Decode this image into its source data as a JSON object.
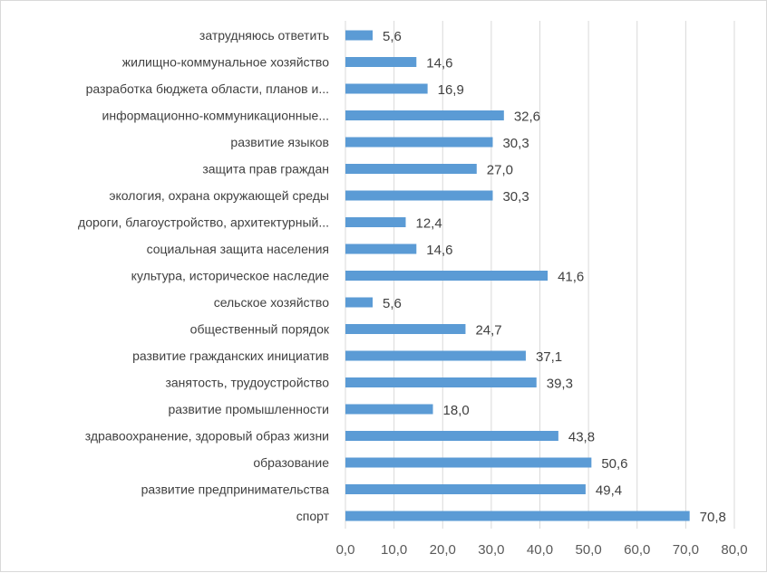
{
  "chart_data": {
    "type": "bar",
    "orientation": "horizontal",
    "title": "",
    "xlabel": "",
    "ylabel": "",
    "categories": [
      "затрудняюсь ответить",
      "жилищно-коммунальное хозяйство",
      "разработка бюджета области, планов и...",
      "информационно-коммуникационные...",
      "развитие языков",
      "защита прав граждан",
      "экология, охрана окружающей среды",
      "дороги, благоустройство, архитектурный...",
      "социальная защита населения",
      "культура, историческое наследие",
      "сельское хозяйство",
      "общественный порядок",
      "развитие гражданских инициатив",
      "занятость, трудоустройство",
      "развитие промышленности",
      "здравоохранение, здоровый образ жизни",
      "образование",
      "развитие предпринимательства",
      "спорт"
    ],
    "values": [
      5.6,
      14.6,
      16.9,
      32.6,
      30.3,
      27.0,
      30.3,
      12.4,
      14.6,
      41.6,
      5.6,
      24.7,
      37.1,
      39.3,
      18.0,
      43.8,
      50.6,
      49.4,
      70.8
    ],
    "value_labels": [
      "5,6",
      "14,6",
      "16,9",
      "32,6",
      "30,3",
      "27,0",
      "30,3",
      "12,4",
      "14,6",
      "41,6",
      "5,6",
      "24,7",
      "37,1",
      "39,3",
      "18,0",
      "43,8",
      "50,6",
      "49,4",
      "70,8"
    ],
    "xlim": [
      0,
      80
    ],
    "ticks": [
      0,
      10,
      20,
      30,
      40,
      50,
      60,
      70,
      80
    ],
    "tick_labels": [
      "0,0",
      "10,0",
      "20,0",
      "30,0",
      "40,0",
      "50,0",
      "60,0",
      "70,0",
      "80,0"
    ],
    "grid": true,
    "legend": "none",
    "colors": {
      "bar": "#5b9bd5",
      "grid": "#d9d9d9",
      "text": "#404040",
      "axis_text": "#595959"
    }
  }
}
